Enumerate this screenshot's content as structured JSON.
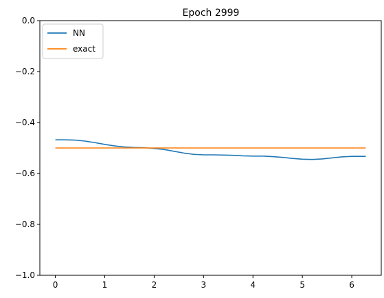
{
  "chart_data": {
    "type": "line",
    "title": "Epoch 2999",
    "xlabel": "",
    "ylabel": "",
    "xlim": [
      -0.314,
      6.597
    ],
    "ylim": [
      -1.0,
      0.0
    ],
    "x_ticks": [
      0,
      1,
      2,
      3,
      4,
      5,
      6
    ],
    "y_ticks": [
      0.0,
      -0.2,
      -0.4,
      -0.6,
      -0.8,
      -1.0
    ],
    "x_tick_labels": [
      "0",
      "1",
      "2",
      "3",
      "4",
      "5",
      "6"
    ],
    "y_tick_labels": [
      "0.0",
      "−0.2",
      "−0.4",
      "−0.6",
      "−0.8",
      "−1.0"
    ],
    "grid": false,
    "legend_position": "top-left",
    "series": [
      {
        "name": "NN",
        "color": "#1f77b4",
        "x": [
          0.0,
          0.2,
          0.4,
          0.6,
          0.8,
          1.0,
          1.2,
          1.4,
          1.6,
          1.8,
          2.0,
          2.2,
          2.4,
          2.6,
          2.8,
          3.0,
          3.2,
          3.4,
          3.6,
          3.8,
          4.0,
          4.2,
          4.4,
          4.6,
          4.8,
          5.0,
          5.2,
          5.4,
          5.6,
          5.8,
          6.0,
          6.283
        ],
        "y": [
          -0.468,
          -0.468,
          -0.469,
          -0.473,
          -0.479,
          -0.486,
          -0.492,
          -0.496,
          -0.498,
          -0.499,
          -0.502,
          -0.506,
          -0.513,
          -0.52,
          -0.525,
          -0.527,
          -0.527,
          -0.528,
          -0.529,
          -0.531,
          -0.532,
          -0.532,
          -0.534,
          -0.537,
          -0.541,
          -0.544,
          -0.545,
          -0.543,
          -0.539,
          -0.535,
          -0.533,
          -0.533
        ]
      },
      {
        "name": "exact",
        "color": "#ff7f0e",
        "x": [
          0.0,
          6.283
        ],
        "y": [
          -0.5,
          -0.5
        ]
      }
    ]
  }
}
